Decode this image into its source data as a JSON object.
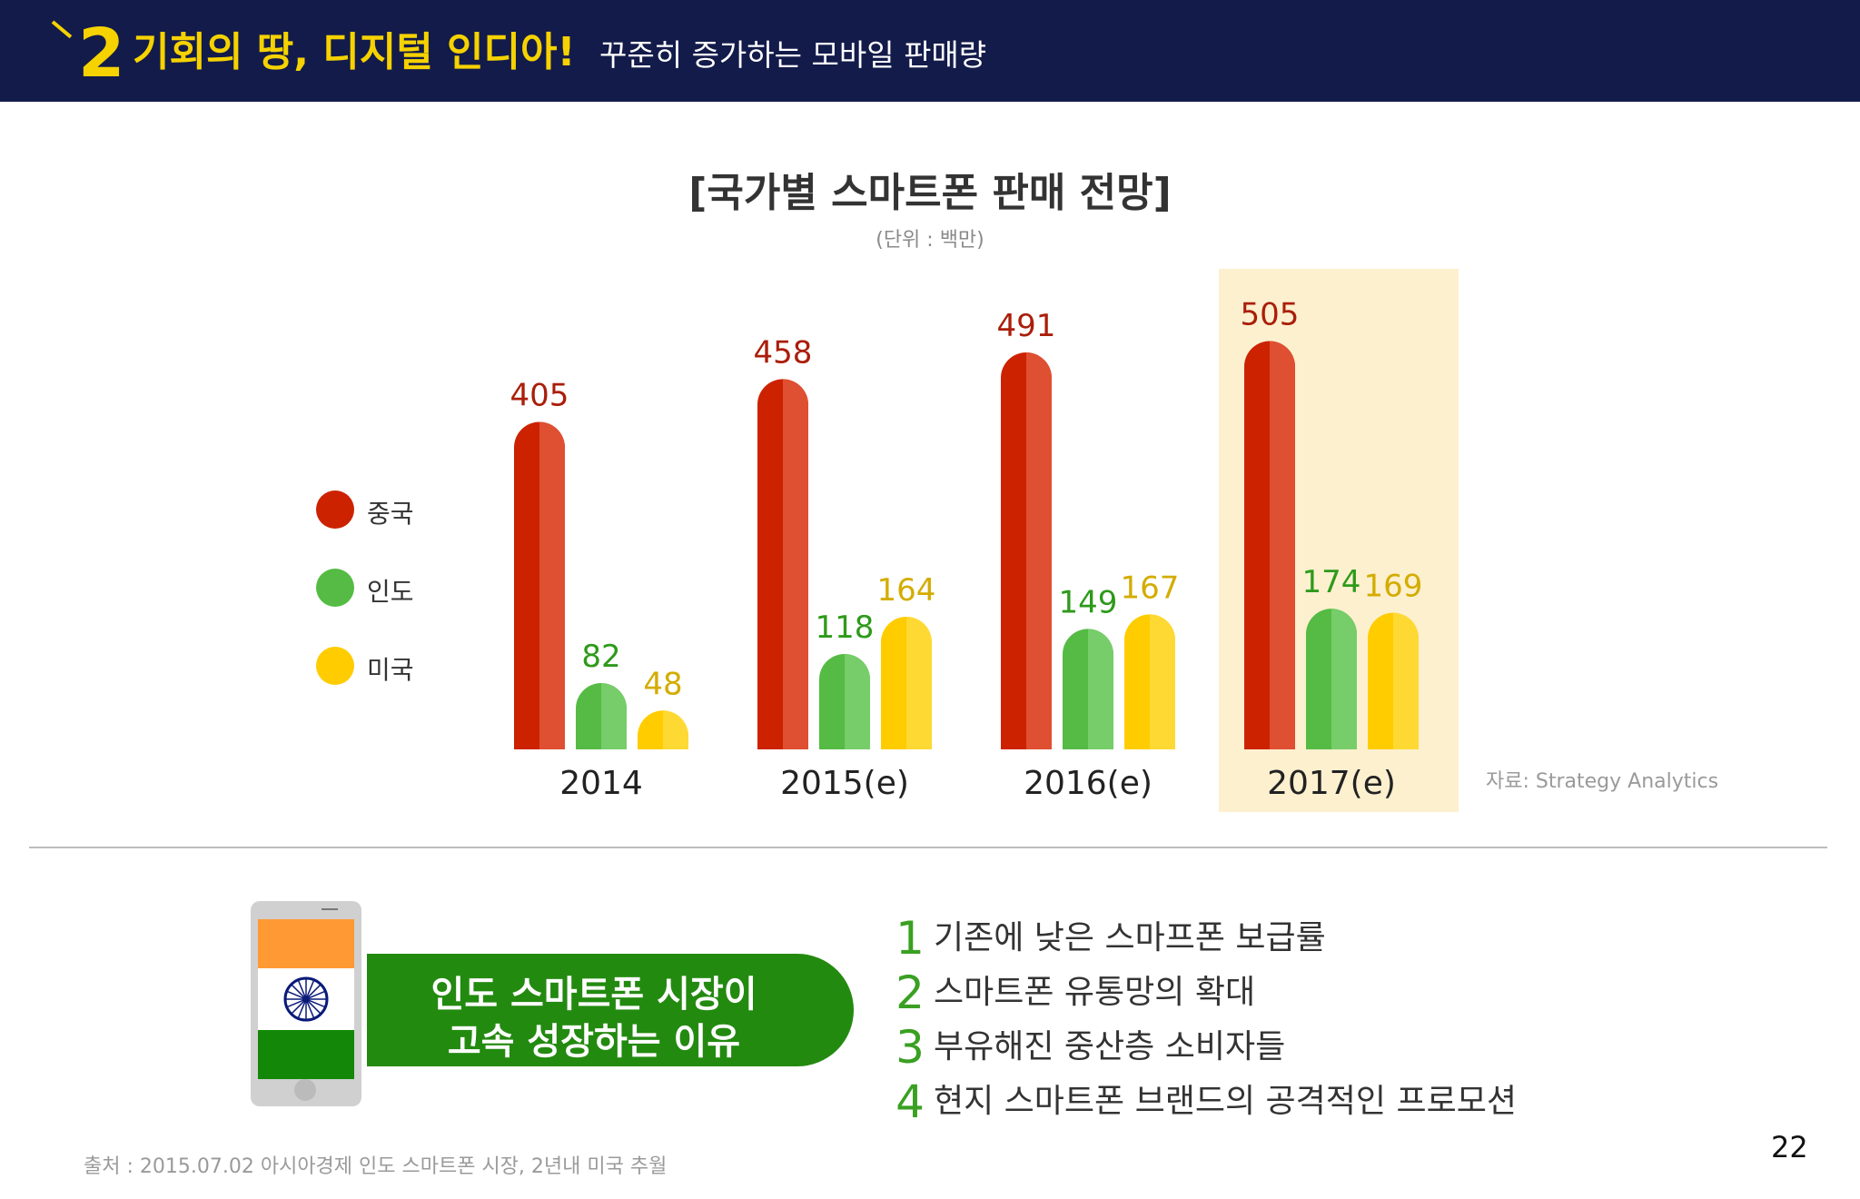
{
  "header": {
    "section_number": "2",
    "title": "기회의 땅, 디지털 인디아!",
    "subtitle": "꾸준히 증가하는 모바일 판매량"
  },
  "chart_title": "[국가별 스마트폰 판매 전망]",
  "chart_unit": "(단위 : 백만)",
  "chart_data": {
    "type": "bar",
    "title": "[국가별 스마트폰 판매 전망]",
    "unit": "(단위 : 백만)",
    "categories": [
      "2014",
      "2015(e)",
      "2016(e)",
      "2017(e)"
    ],
    "series": [
      {
        "name": "중국",
        "color": "#cc2200",
        "values": [
          405,
          458,
          491,
          505
        ]
      },
      {
        "name": "인도",
        "color": "#55bb44",
        "values": [
          82,
          118,
          149,
          174
        ]
      },
      {
        "name": "미국",
        "color": "#ffcc00",
        "values": [
          48,
          164,
          167,
          169
        ]
      }
    ],
    "highlight_category": "2017(e)",
    "highlight_color": "#fdf0cf",
    "legend_position": "left",
    "grid": false
  },
  "legend": [
    {
      "label": "중국",
      "color": "#cc2200"
    },
    {
      "label": "인도",
      "color": "#55bb44"
    },
    {
      "label": "미국",
      "color": "#ffcc00"
    }
  ],
  "source_right": "자료: Strategy Analytics",
  "reason_banner": {
    "line1": "인도 스마트폰 시장이",
    "line2": "고속 성장하는 이유",
    "color": "#238a10"
  },
  "phone_icon": "india-flag-phone-icon",
  "reasons": [
    {
      "num": "1",
      "text": "기존에 낮은 스마프폰 보급률"
    },
    {
      "num": "2",
      "text": "스마트폰 유통망의 확대"
    },
    {
      "num": "3",
      "text": "부유해진 중산층 소비자들"
    },
    {
      "num": "4",
      "text": "현지 스마트폰 브랜드의 공격적인 프로모션"
    }
  ],
  "page_number": "22",
  "footnote": "출처 : 2015.07.02 아시아경제 인도 스마트폰 시장, 2년내 미국 추월"
}
